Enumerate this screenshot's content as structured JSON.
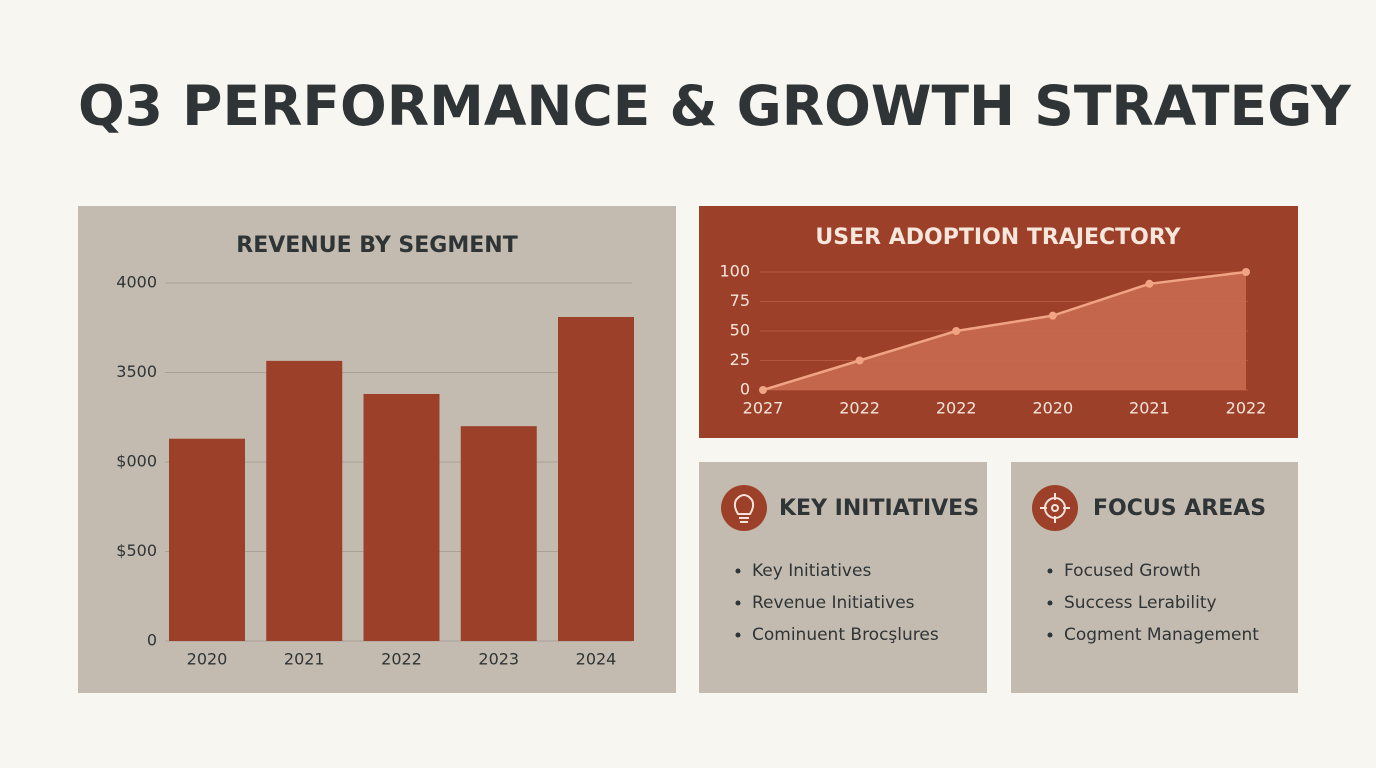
{
  "title": "Q3 PERFORMANCE & GROWTH STRATEGY",
  "chart_data": [
    {
      "type": "bar",
      "title": "REVENUE BY SEGMENT",
      "categories": [
        "2020",
        "2021",
        "2022",
        "2023",
        "2024"
      ],
      "values": [
        2260,
        3130,
        2760,
        2400,
        3620
      ],
      "color": "#9c4029",
      "ylim": [
        0,
        4000
      ],
      "yticks": [
        0,
        {
          "value": 1000,
          "label": "$500"
        },
        {
          "value": 2000,
          "label": "$000"
        },
        {
          "value": 3000,
          "label": "3500"
        },
        {
          "value": 4000,
          "label": "4000"
        }
      ],
      "grid": true
    },
    {
      "type": "line",
      "title": "USER ADOPTION TRAJECTORY",
      "categories": [
        "2027",
        "2022",
        "2022",
        "2020",
        "2021",
        "2022"
      ],
      "values": [
        0,
        25,
        50,
        63,
        90,
        100
      ],
      "color": "#f0a484",
      "ylim": [
        0,
        100
      ],
      "yticks": [
        0,
        25,
        50,
        75,
        100
      ],
      "grid": true
    }
  ],
  "panels": [
    {
      "title": "KEY INITIATIVES",
      "items": [
        "Key Initiatives",
        "Revenue Initiatives",
        "Cominuent Brocşlures"
      ]
    },
    {
      "title": "FOCUS AREAS",
      "items": [
        "Focused Growth",
        "Success Lerability",
        "Cogment Management"
      ]
    }
  ]
}
